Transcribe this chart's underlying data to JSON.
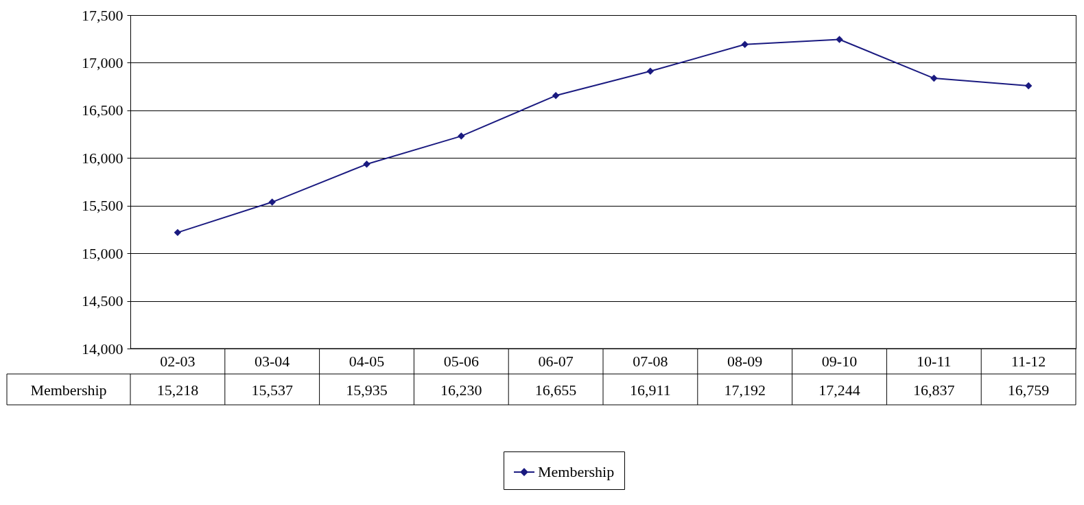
{
  "chart_data": {
    "type": "line",
    "categories": [
      "02-03",
      "03-04",
      "04-05",
      "05-06",
      "06-07",
      "07-08",
      "08-09",
      "09-10",
      "10-11",
      "11-12"
    ],
    "series": [
      {
        "name": "Membership",
        "color": "#1a1a80",
        "values": [
          15218,
          15537,
          15935,
          16230,
          16655,
          16911,
          17192,
          17244,
          16837,
          16759
        ],
        "value_labels": [
          "15,218",
          "15,537",
          "15,935",
          "16,230",
          "16,655",
          "16,911",
          "17,192",
          "17,244",
          "16,837",
          "16,759"
        ]
      }
    ],
    "ylim": [
      14000,
      17500
    ],
    "yticks": [
      {
        "value": 14000,
        "label": "14,000"
      },
      {
        "value": 14500,
        "label": "14,500"
      },
      {
        "value": 15000,
        "label": "15,000"
      },
      {
        "value": 15500,
        "label": "15,500"
      },
      {
        "value": 16000,
        "label": "16,000"
      },
      {
        "value": 16500,
        "label": "16,500"
      },
      {
        "value": 17000,
        "label": "17,000"
      },
      {
        "value": 17500,
        "label": "17,500"
      }
    ],
    "grid": "y",
    "legend": "bottom",
    "marker": "diamond",
    "line_style": "solid"
  }
}
